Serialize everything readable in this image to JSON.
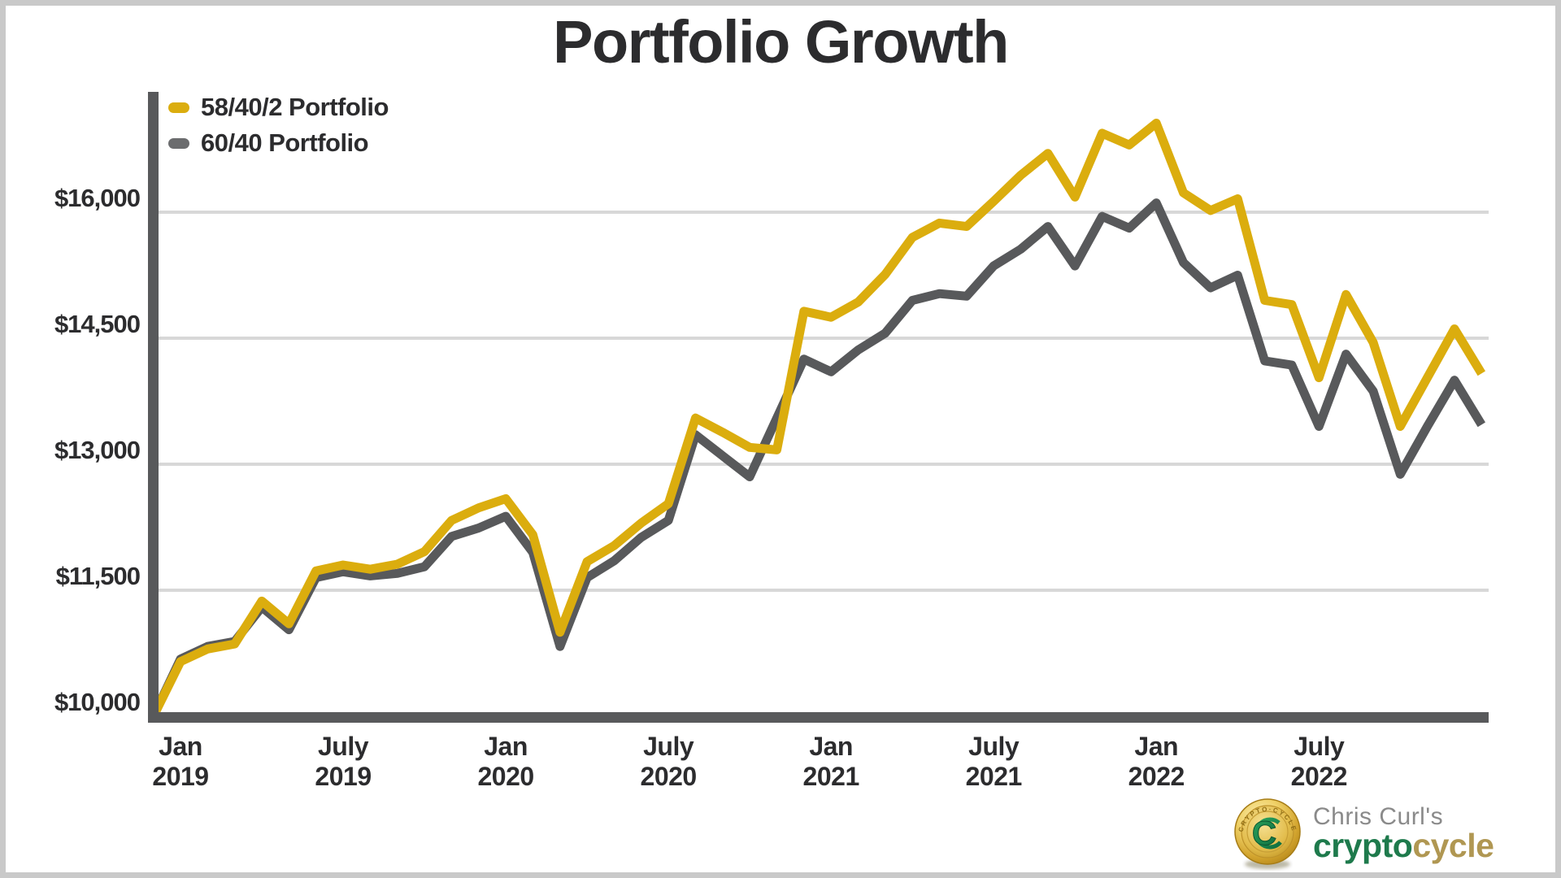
{
  "title": "Portfolio Growth",
  "colors": {
    "accent_yellow": "#DBAD0E",
    "line_gray": "#58595B",
    "swatch_gray": "#6B6C6E",
    "axis_bar": "#58595B",
    "gridline": "#D8D8D8",
    "text_dark": "#2C2C2E",
    "frame_border": "#C9C9C9",
    "byline_gray": "#8A8A8A",
    "brand_green": "#1E7A4C",
    "brand_gold": "#B09752",
    "coin_gold": "#D9B23E",
    "background": "#FFFFFF"
  },
  "branding": {
    "byline": "Chris Curl's",
    "brand_green_part": "crypto",
    "brand_gold_part": "cycle",
    "coin_letter": "C",
    "coin_rim_text": "CRYPTO·CYCLE"
  },
  "chart_data": {
    "type": "line",
    "title": "Portfolio Growth",
    "xlabel": "",
    "ylabel": "",
    "grid": "horizontal",
    "legend_position": "top-left",
    "ylim": [
      10000,
      17800
    ],
    "x": [
      "Dec 2018",
      "Jan 2019",
      "Feb 2019",
      "Mar 2019",
      "Apr 2019",
      "May 2019",
      "Jun 2019",
      "Jul 2019",
      "Aug 2019",
      "Sep 2019",
      "Oct 2019",
      "Nov 2019",
      "Dec 2019",
      "Jan 2020",
      "Feb 2020",
      "Mar 2020",
      "Apr 2020",
      "May 2020",
      "Jun 2020",
      "Jul 2020",
      "Aug 2020",
      "Sep 2020",
      "Oct 2020",
      "Nov 2020",
      "Dec 2020",
      "Jan 2021",
      "Feb 2021",
      "Mar 2021",
      "Apr 2021",
      "May 2021",
      "Jun 2021",
      "Jul 2021",
      "Aug 2021",
      "Sep 2021",
      "Oct 2021",
      "Nov 2021",
      "Dec 2021",
      "Jan 2022",
      "Feb 2022",
      "Mar 2022",
      "Apr 2022",
      "May 2022",
      "Jun 2022",
      "Jul 2022",
      "Aug 2022",
      "Sep 2022",
      "Oct 2022",
      "Nov 2022",
      "Dec 2022",
      "Jan 2023"
    ],
    "series": [
      {
        "name": "58/40/2 Portfolio",
        "color": "#DBAD0E",
        "values": [
          10000,
          10650,
          10800,
          10860,
          11370,
          11100,
          11730,
          11800,
          11750,
          11810,
          11960,
          12330,
          12480,
          12590,
          12160,
          11000,
          11840,
          12030,
          12300,
          12530,
          13550,
          13380,
          13200,
          13170,
          14820,
          14750,
          14930,
          15260,
          15700,
          15870,
          15830,
          16130,
          16440,
          16700,
          16180,
          16940,
          16800,
          17060,
          16230,
          16020,
          16160,
          14950,
          14900,
          14030,
          15020,
          14450,
          13450,
          14030,
          14610,
          14080
        ]
      },
      {
        "name": "60/40 Portfolio",
        "color": "#58595B",
        "values": [
          10000,
          10680,
          10830,
          10890,
          11300,
          11030,
          11650,
          11720,
          11670,
          11700,
          11780,
          12140,
          12240,
          12380,
          11950,
          10830,
          11650,
          11850,
          12130,
          12330,
          13350,
          13100,
          12850,
          13550,
          14250,
          14100,
          14360,
          14560,
          14950,
          15030,
          15000,
          15360,
          15560,
          15830,
          15360,
          15950,
          15810,
          16110,
          15400,
          15100,
          15250,
          14230,
          14180,
          13450,
          14310,
          13870,
          12880,
          13450,
          14000,
          13470
        ]
      }
    ],
    "y_ticks": [
      {
        "label": "$10,000",
        "value": 10000
      },
      {
        "label": "$11,500",
        "value": 11500
      },
      {
        "label": "$13,000",
        "value": 13000
      },
      {
        "label": "$14,500",
        "value": 14500
      },
      {
        "label": "$16,000",
        "value": 16000
      }
    ],
    "x_ticks": [
      {
        "line1": "Jan",
        "line2": "2019",
        "month_index": 1
      },
      {
        "line1": "July",
        "line2": "2019",
        "month_index": 7
      },
      {
        "line1": "Jan",
        "line2": "2020",
        "month_index": 13
      },
      {
        "line1": "July",
        "line2": "2020",
        "month_index": 19
      },
      {
        "line1": "Jan",
        "line2": "2021",
        "month_index": 25
      },
      {
        "line1": "July",
        "line2": "2021",
        "month_index": 31
      },
      {
        "line1": "Jan",
        "line2": "2022",
        "month_index": 37
      },
      {
        "line1": "July",
        "line2": "2022",
        "month_index": 43
      }
    ]
  }
}
